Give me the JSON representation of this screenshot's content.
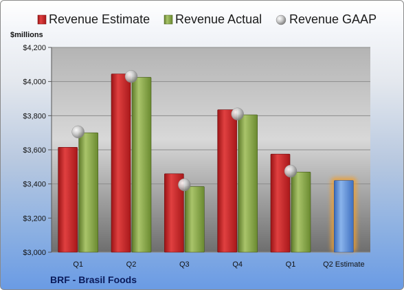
{
  "chart_data": {
    "type": "bar",
    "title": "",
    "unit_label": "$millions",
    "footer": "BRF - Brasil Foods",
    "categories": [
      "Q1",
      "Q2",
      "Q3",
      "Q4",
      "Q1",
      "Q2 Estimate"
    ],
    "y_ticks": [
      "$3,000",
      "$3,200",
      "$3,400",
      "$3,600",
      "$3,800",
      "$4,000",
      "$4,200"
    ],
    "ylim": [
      3000,
      4200
    ],
    "grid": true,
    "legend_position": "top",
    "series": [
      {
        "name": "Revenue Estimate",
        "kind": "bar",
        "color": "#c8282a",
        "values": [
          3615,
          4045,
          3460,
          3835,
          3575,
          null
        ]
      },
      {
        "name": "Revenue Actual",
        "kind": "bar",
        "color": "#8aa84a",
        "values": [
          3700,
          4025,
          3385,
          3805,
          3470,
          null
        ]
      },
      {
        "name": "Revenue GAAP",
        "kind": "marker",
        "color": "#c0c0c0",
        "values": [
          3705,
          4030,
          3395,
          3810,
          3475,
          null
        ]
      },
      {
        "name": "Q2 Estimate",
        "kind": "highlight-bar",
        "color": "#5b8fd8",
        "glow": "#f0a030",
        "values": [
          null,
          null,
          null,
          null,
          null,
          3420
        ]
      }
    ]
  }
}
